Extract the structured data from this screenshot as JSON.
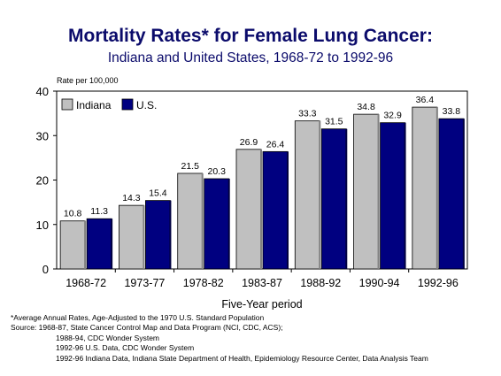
{
  "title": "Mortality Rates* for Female Lung Cancer:",
  "subtitle": "Indiana and United States, 1968-72 to 1992-96",
  "chart_data": {
    "type": "bar",
    "ylabel": "Rate per 100,000",
    "xlabel": "Five-Year period",
    "categories": [
      "1968-72",
      "1973-77",
      "1978-82",
      "1983-87",
      "1988-92",
      "1990-94",
      "1992-96"
    ],
    "series": [
      {
        "name": "Indiana",
        "values": [
          10.8,
          14.3,
          21.5,
          26.9,
          33.3,
          34.8,
          36.4
        ],
        "color": "#c0c0c0"
      },
      {
        "name": "U.S.",
        "values": [
          11.3,
          15.4,
          20.3,
          26.4,
          31.5,
          32.9,
          33.8
        ],
        "color": "#000080"
      }
    ],
    "ylim": [
      0,
      40
    ],
    "yticks": [
      0,
      10,
      20,
      30,
      40
    ],
    "grid": false,
    "legend_position": "top-left"
  },
  "footnotes": {
    "asterisk": "*Average Annual Rates, Age-Adjusted to the 1970 U.S. Standard Population",
    "source_line1": "Source:  1968-87, State Cancer Control Map and Data Program (NCI, CDC, ACS);",
    "source_line2": "1988-94, CDC Wonder System",
    "source_line3": "1992-96 U.S. Data, CDC Wonder System",
    "source_line4": "1992-96 Indiana Data, Indiana State Department of Health, Epidemiology Resource Center, Data Analysis Team"
  }
}
